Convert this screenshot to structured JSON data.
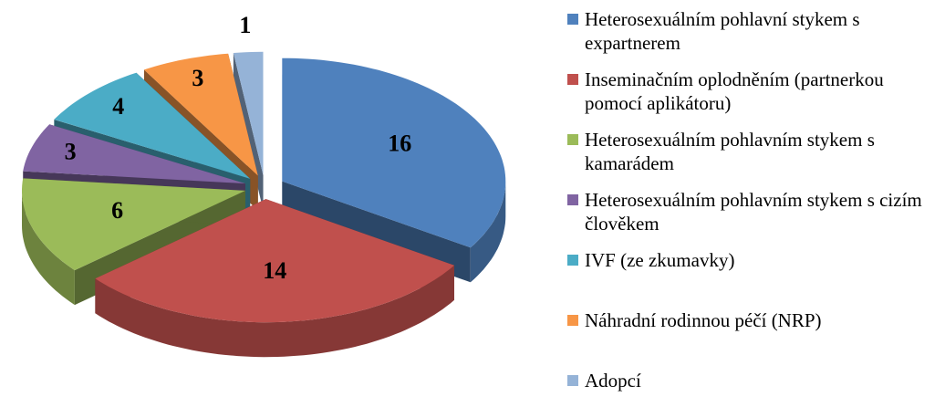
{
  "chart_data": {
    "type": "pie3d",
    "categories": [
      "Heterosexuálním pohlavní stykem s expartnerem",
      "Inseminačním oplodněním (partnerkou pomocí aplikátoru)",
      "Heterosexuálním pohlavním stykem s kamarádem",
      "Heterosexuálním pohlavním stykem s cizím člověkem",
      "IVF (ze zkumavky)",
      "Náhradní rodinnou péčí (NRP)",
      "Adopcí"
    ],
    "values": [
      16,
      14,
      6,
      3,
      4,
      3,
      1
    ],
    "colors": [
      "#4f81bd",
      "#c0504d",
      "#9bbb59",
      "#8064a2",
      "#4bacc6",
      "#f79646",
      "#95b3d7"
    ],
    "legend": "right"
  }
}
